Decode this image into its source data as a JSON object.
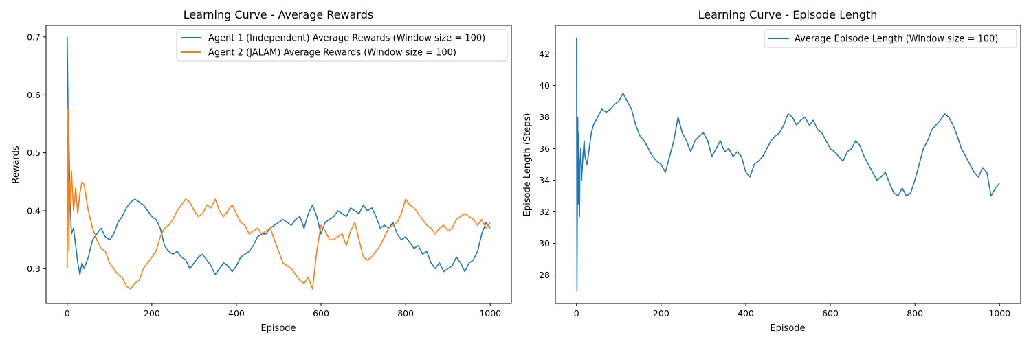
{
  "chart_data": [
    {
      "type": "line",
      "title": "Learning Curve - Average Rewards",
      "xlabel": "Episode",
      "ylabel": "Rewards",
      "xlim": [
        -50,
        1050
      ],
      "ylim": [
        0.24,
        0.72
      ],
      "xticks": [
        0,
        200,
        400,
        600,
        800,
        1000
      ],
      "yticks": [
        0.3,
        0.4,
        0.5,
        0.6,
        0.7
      ],
      "ytick_labels": [
        "0.3",
        "0.4",
        "0.5",
        "0.6",
        "0.7"
      ],
      "grid": false,
      "legend": "top-right",
      "series": [
        {
          "name": "Agent 1 (Independent) Average Rewards (Window size = 100)",
          "color": "#1f77b4",
          "x": [
            0,
            2,
            4,
            6,
            8,
            10,
            15,
            20,
            25,
            30,
            35,
            40,
            50,
            60,
            70,
            80,
            90,
            100,
            110,
            120,
            130,
            140,
            150,
            160,
            170,
            180,
            190,
            200,
            210,
            220,
            230,
            240,
            250,
            260,
            270,
            280,
            290,
            300,
            310,
            320,
            330,
            340,
            350,
            360,
            370,
            380,
            390,
            400,
            410,
            420,
            430,
            440,
            450,
            460,
            470,
            480,
            490,
            500,
            510,
            520,
            530,
            540,
            550,
            560,
            570,
            580,
            590,
            600,
            610,
            620,
            630,
            640,
            650,
            660,
            670,
            680,
            690,
            700,
            710,
            720,
            730,
            740,
            750,
            760,
            770,
            780,
            790,
            800,
            810,
            820,
            830,
            840,
            850,
            860,
            870,
            880,
            890,
            900,
            910,
            920,
            930,
            940,
            950,
            960,
            970,
            980,
            990,
            1000
          ],
          "y": [
            0.7,
            0.58,
            0.53,
            0.44,
            0.4,
            0.36,
            0.37,
            0.34,
            0.31,
            0.29,
            0.31,
            0.3,
            0.32,
            0.35,
            0.36,
            0.37,
            0.355,
            0.35,
            0.36,
            0.38,
            0.39,
            0.405,
            0.415,
            0.42,
            0.415,
            0.41,
            0.4,
            0.39,
            0.385,
            0.37,
            0.34,
            0.33,
            0.325,
            0.33,
            0.32,
            0.315,
            0.3,
            0.31,
            0.32,
            0.325,
            0.315,
            0.305,
            0.29,
            0.3,
            0.31,
            0.305,
            0.295,
            0.305,
            0.32,
            0.325,
            0.33,
            0.34,
            0.355,
            0.36,
            0.36,
            0.37,
            0.375,
            0.38,
            0.385,
            0.38,
            0.375,
            0.385,
            0.39,
            0.37,
            0.395,
            0.41,
            0.39,
            0.36,
            0.38,
            0.385,
            0.39,
            0.4,
            0.395,
            0.39,
            0.405,
            0.4,
            0.395,
            0.41,
            0.4,
            0.405,
            0.39,
            0.37,
            0.375,
            0.37,
            0.38,
            0.36,
            0.35,
            0.355,
            0.345,
            0.335,
            0.34,
            0.325,
            0.33,
            0.31,
            0.3,
            0.31,
            0.295,
            0.3,
            0.305,
            0.32,
            0.31,
            0.295,
            0.31,
            0.315,
            0.33,
            0.36,
            0.38,
            0.37
          ]
        },
        {
          "name": "Agent 2 (JALAM) Average Rewards (Window size = 100)",
          "color": "#ff7f0e",
          "x": [
            0,
            2,
            4,
            6,
            8,
            10,
            15,
            20,
            25,
            30,
            35,
            40,
            50,
            60,
            70,
            80,
            90,
            100,
            110,
            120,
            130,
            140,
            150,
            160,
            170,
            180,
            190,
            200,
            210,
            220,
            230,
            240,
            250,
            260,
            270,
            280,
            290,
            300,
            310,
            320,
            330,
            340,
            350,
            360,
            370,
            380,
            390,
            400,
            410,
            420,
            430,
            440,
            450,
            460,
            470,
            480,
            490,
            500,
            510,
            520,
            530,
            540,
            550,
            560,
            570,
            580,
            590,
            600,
            610,
            620,
            630,
            640,
            650,
            660,
            670,
            680,
            690,
            700,
            710,
            720,
            730,
            740,
            750,
            760,
            770,
            780,
            790,
            800,
            810,
            820,
            830,
            840,
            850,
            860,
            870,
            880,
            890,
            900,
            910,
            920,
            930,
            940,
            950,
            960,
            970,
            980,
            990,
            1000
          ],
          "y": [
            0.3,
            0.575,
            0.33,
            0.45,
            0.41,
            0.47,
            0.4,
            0.44,
            0.395,
            0.43,
            0.45,
            0.445,
            0.4,
            0.37,
            0.35,
            0.335,
            0.33,
            0.31,
            0.3,
            0.29,
            0.285,
            0.27,
            0.265,
            0.275,
            0.28,
            0.3,
            0.31,
            0.32,
            0.33,
            0.355,
            0.37,
            0.375,
            0.385,
            0.4,
            0.41,
            0.42,
            0.415,
            0.4,
            0.39,
            0.395,
            0.41,
            0.405,
            0.42,
            0.4,
            0.39,
            0.4,
            0.41,
            0.395,
            0.38,
            0.375,
            0.36,
            0.365,
            0.37,
            0.36,
            0.365,
            0.37,
            0.35,
            0.33,
            0.31,
            0.305,
            0.3,
            0.29,
            0.28,
            0.275,
            0.285,
            0.265,
            0.33,
            0.375,
            0.365,
            0.35,
            0.35,
            0.355,
            0.36,
            0.34,
            0.365,
            0.38,
            0.35,
            0.32,
            0.315,
            0.32,
            0.33,
            0.34,
            0.355,
            0.37,
            0.375,
            0.38,
            0.395,
            0.42,
            0.41,
            0.405,
            0.395,
            0.385,
            0.375,
            0.37,
            0.36,
            0.37,
            0.375,
            0.365,
            0.37,
            0.385,
            0.39,
            0.395,
            0.39,
            0.385,
            0.375,
            0.385,
            0.37,
            0.38
          ]
        }
      ]
    },
    {
      "type": "line",
      "title": "Learning Curve - Episode Length",
      "xlabel": "Episode",
      "ylabel": "Episode Length (Steps)",
      "xlim": [
        -50,
        1050
      ],
      "ylim": [
        26.2,
        43.8
      ],
      "xticks": [
        0,
        200,
        400,
        600,
        800,
        1000
      ],
      "yticks": [
        28,
        30,
        32,
        34,
        36,
        38,
        40,
        42
      ],
      "ytick_labels": [
        "28",
        "30",
        "32",
        "34",
        "36",
        "38",
        "40",
        "42"
      ],
      "grid": false,
      "legend": "top-right",
      "series": [
        {
          "name": "Average Episode Length (Window size = 100)",
          "color": "#1f77b4",
          "x": [
            0,
            1,
            2,
            3,
            4,
            5,
            6,
            7,
            8,
            10,
            12,
            15,
            18,
            20,
            25,
            30,
            35,
            40,
            50,
            60,
            70,
            80,
            90,
            100,
            110,
            120,
            130,
            140,
            150,
            160,
            170,
            180,
            190,
            200,
            210,
            220,
            230,
            240,
            250,
            260,
            270,
            280,
            290,
            300,
            310,
            320,
            330,
            340,
            350,
            360,
            370,
            380,
            390,
            400,
            410,
            420,
            430,
            440,
            450,
            460,
            470,
            480,
            490,
            500,
            510,
            520,
            530,
            540,
            550,
            560,
            570,
            580,
            590,
            600,
            610,
            620,
            630,
            640,
            650,
            660,
            670,
            680,
            690,
            700,
            710,
            720,
            730,
            740,
            750,
            760,
            770,
            780,
            790,
            800,
            810,
            820,
            830,
            840,
            850,
            860,
            870,
            880,
            890,
            900,
            910,
            920,
            930,
            940,
            950,
            960,
            970,
            980,
            990,
            1000
          ],
          "y": [
            43.0,
            27.0,
            33.0,
            38.0,
            32.5,
            37.0,
            34.0,
            31.7,
            35.0,
            36.0,
            34.0,
            35.5,
            36.5,
            35.5,
            35.0,
            36.0,
            37.0,
            37.5,
            38.0,
            38.5,
            38.3,
            38.5,
            38.8,
            39.0,
            39.5,
            39.0,
            38.5,
            37.5,
            36.8,
            36.5,
            36.0,
            35.5,
            35.2,
            35.0,
            34.5,
            35.5,
            36.5,
            38.0,
            37.0,
            36.5,
            35.8,
            36.5,
            36.8,
            37.0,
            36.5,
            35.5,
            36.0,
            36.5,
            35.8,
            36.0,
            35.5,
            35.8,
            35.5,
            34.5,
            34.2,
            35.0,
            35.2,
            35.5,
            36.0,
            36.5,
            36.8,
            37.0,
            37.5,
            38.2,
            38.0,
            37.5,
            37.8,
            38.0,
            37.5,
            37.8,
            37.2,
            37.0,
            36.5,
            36.0,
            35.8,
            35.5,
            35.2,
            35.8,
            36.0,
            36.5,
            36.2,
            35.5,
            35.0,
            34.5,
            34.0,
            34.2,
            34.5,
            33.8,
            33.2,
            33.0,
            33.5,
            33.0,
            33.2,
            34.0,
            35.0,
            36.0,
            36.5,
            37.2,
            37.5,
            37.8,
            38.2,
            38.0,
            37.5,
            36.8,
            36.0,
            35.5,
            35.0,
            34.5,
            34.2,
            34.8,
            34.5,
            33.0,
            33.5,
            33.8
          ]
        }
      ]
    }
  ]
}
